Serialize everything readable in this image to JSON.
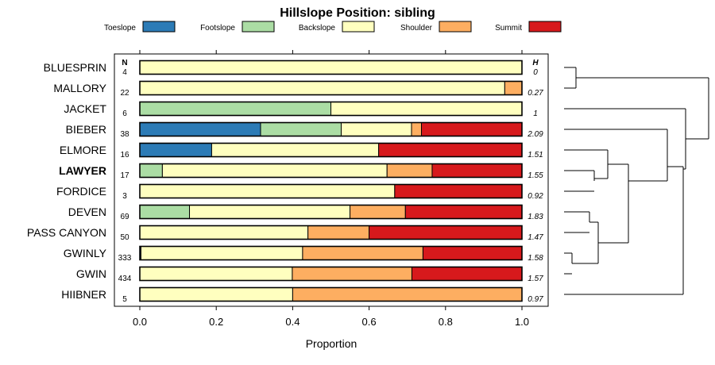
{
  "chart_data": {
    "type": "bar",
    "orientation": "horizontal",
    "stacked": true,
    "title": "Hillslope Position: sibling",
    "xlabel": "Proportion",
    "ylabel": "",
    "xlim": [
      0,
      1
    ],
    "xticks": [
      "0.0",
      "0.2",
      "0.4",
      "0.6",
      "0.8",
      "1.0"
    ],
    "grid": false,
    "legend_position": "top",
    "n_header": "N",
    "h_header": "H",
    "categories": [
      "BLUESPRIN",
      "MALLORY",
      "JACKET",
      "BIEBER",
      "ELMORE",
      "LAWYER",
      "FORDICE",
      "DEVEN",
      "PASS CANYON",
      "GWINLY",
      "GWIN",
      "HIIBNER"
    ],
    "highlighted": "LAWYER",
    "n_values": [
      "4",
      "22",
      "6",
      "38",
      "16",
      "17",
      "3",
      "69",
      "50",
      "333",
      "434",
      "5"
    ],
    "h_values": [
      "0",
      "0.27",
      "1",
      "2.09",
      "1.51",
      "1.55",
      "0.92",
      "1.83",
      "1.47",
      "1.58",
      "1.57",
      "0.97"
    ],
    "series": [
      {
        "name": "Toeslope",
        "color": "#2c7bb6",
        "values": [
          0,
          0,
          0,
          0.316,
          0.188,
          0,
          0,
          0,
          0,
          0.003,
          0,
          0
        ]
      },
      {
        "name": "Footslope",
        "color": "#abdda4",
        "values": [
          0,
          0,
          0.5,
          0.211,
          0,
          0.059,
          0,
          0.13,
          0,
          0,
          0,
          0
        ]
      },
      {
        "name": "Backslope",
        "color": "#ffffbf",
        "values": [
          1,
          0.955,
          0.5,
          0.184,
          0.437,
          0.588,
          0.667,
          0.42,
          0.44,
          0.423,
          0.399,
          0.4
        ]
      },
      {
        "name": "Shoulder",
        "color": "#fdae61",
        "values": [
          0,
          0.045,
          0,
          0.026,
          0,
          0.118,
          0,
          0.145,
          0.16,
          0.315,
          0.313,
          0.6
        ]
      },
      {
        "name": "Summit",
        "color": "#d7191c",
        "values": [
          0,
          0,
          0,
          0.263,
          0.375,
          0.235,
          0.333,
          0.305,
          0.4,
          0.259,
          0.288,
          0
        ]
      }
    ]
  }
}
